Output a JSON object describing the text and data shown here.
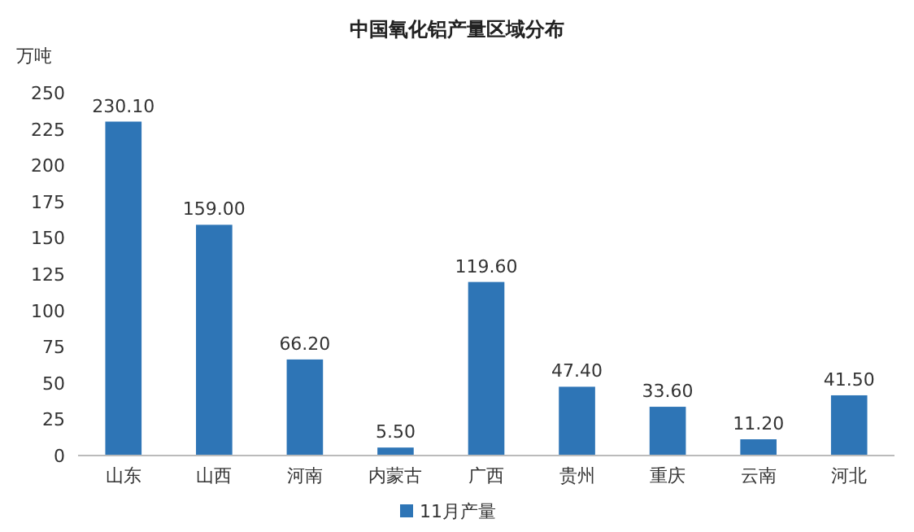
{
  "chart_data": {
    "type": "bar",
    "title": "中国氧化铝产量区域分布",
    "ylabel": "万吨",
    "categories": [
      "山东",
      "山西",
      "河南",
      "内蒙古",
      "广西",
      "贵州",
      "重庆",
      "云南",
      "河北"
    ],
    "series": [
      {
        "name": "11月产量",
        "color": "#2e75b6",
        "values": [
          230.1,
          159.0,
          66.2,
          5.5,
          119.6,
          47.4,
          33.6,
          11.2,
          41.5
        ]
      }
    ],
    "value_labels": [
      "230.10",
      "159.00",
      "66.20",
      "5.50",
      "119.60",
      "47.40",
      "33.60",
      "11.20",
      "41.50"
    ],
    "ylim": [
      0,
      250
    ],
    "yticks": [
      0,
      25,
      50,
      75,
      100,
      125,
      150,
      175,
      200,
      225,
      250
    ],
    "legend": "bottom",
    "grid": false
  }
}
